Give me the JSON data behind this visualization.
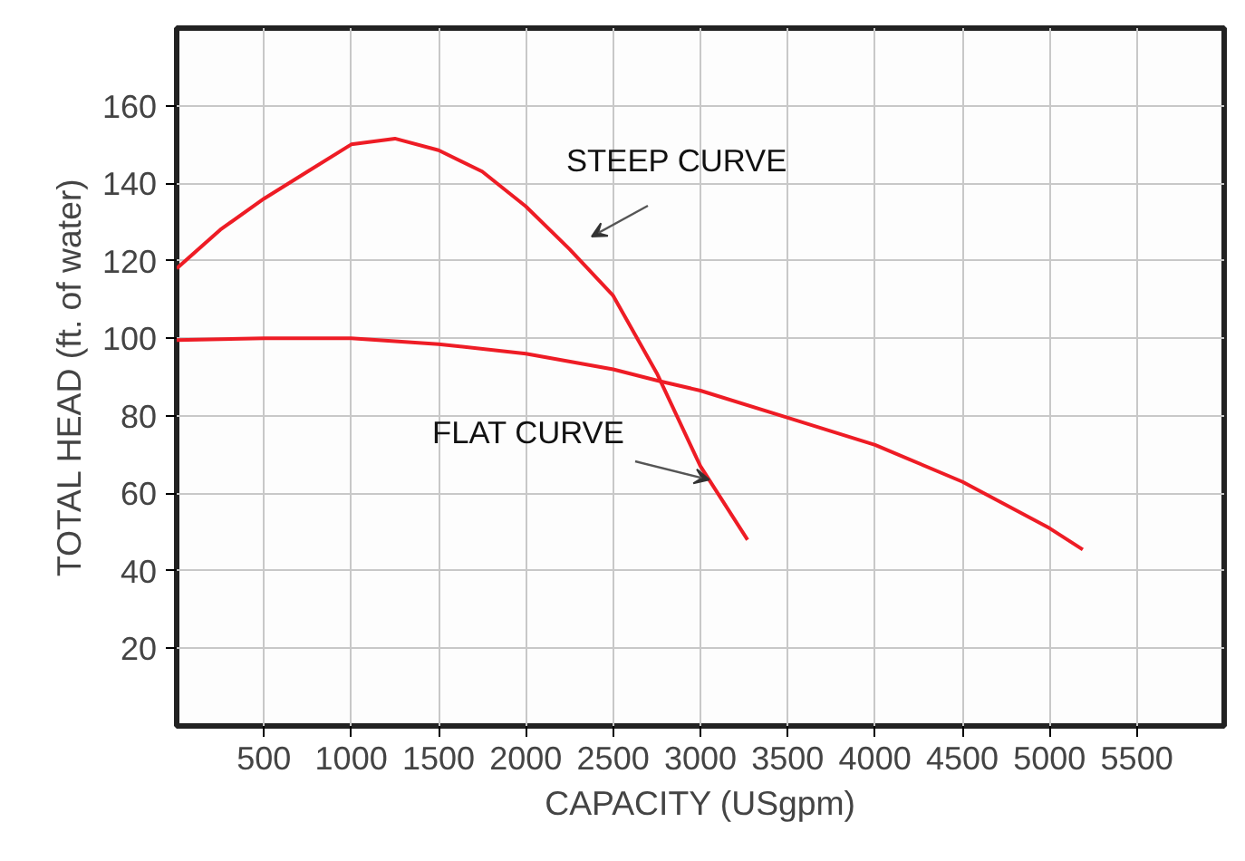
{
  "chart_data": {
    "type": "line",
    "xlabel": "CAPACITY (USgpm)",
    "ylabel": "TOTAL HEAD (ft. of water)",
    "xlim": [
      0,
      6000
    ],
    "xticks": [
      500,
      1000,
      1500,
      2000,
      2500,
      3000,
      3500,
      4000,
      4500,
      5000,
      5500
    ],
    "ylim": [
      0,
      180
    ],
    "yticks": [
      20,
      40,
      60,
      80,
      100,
      120,
      140,
      160
    ],
    "grid": true,
    "marker": "none",
    "line_style": "solid",
    "series": [
      {
        "color": "#ee1c25",
        "x": [
          0,
          250,
          500,
          750,
          1000,
          1250,
          1500,
          1750,
          2000,
          2250,
          2500,
          2750,
          3000,
          3270
        ],
        "values": [
          118,
          128,
          136,
          143,
          150,
          151.5,
          148.5,
          143,
          134,
          123,
          111,
          91,
          67,
          48
        ]
      },
      {
        "color": "#ee1c25",
        "x": [
          0,
          500,
          1000,
          1500,
          2000,
          2500,
          2760,
          3000,
          3500,
          4000,
          4500,
          5000,
          5190
        ],
        "values": [
          99.5,
          100,
          100,
          98.5,
          96,
          92,
          89,
          86.5,
          79.5,
          72.5,
          63,
          51,
          45.5
        ]
      }
    ],
    "annotations": [
      "STEEP CURVE",
      {
        "text": "FLAT CURVE",
        "x": 3050,
        "y": 63.5
      }
    ]
  }
}
